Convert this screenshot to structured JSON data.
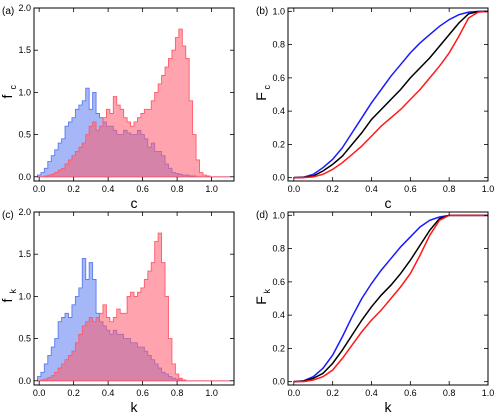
{
  "chart_data": [
    {
      "id": "a",
      "type": "area",
      "panel_label": "(a)",
      "xlabel": "c",
      "ylabel_main": "f",
      "ylabel_sub": "c",
      "xlim": [
        -0.03,
        1.13
      ],
      "ylim": [
        -0.05,
        2.0
      ],
      "xticks": [
        "0.0",
        "0.2",
        "0.4",
        "0.6",
        "0.8",
        "1.0"
      ],
      "yticks": [
        "0.0",
        "0.5",
        "1.0",
        "1.5",
        "2.0"
      ],
      "series": [
        {
          "color": "#5b7cf0",
          "x": [
            0.0,
            0.02,
            0.04,
            0.06,
            0.08,
            0.1,
            0.12,
            0.14,
            0.16,
            0.18,
            0.2,
            0.22,
            0.24,
            0.26,
            0.28,
            0.3,
            0.32,
            0.34,
            0.36,
            0.38,
            0.4,
            0.42,
            0.44,
            0.46,
            0.48,
            0.5,
            0.52,
            0.54,
            0.56,
            0.58,
            0.6,
            0.62,
            0.64,
            0.66,
            0.68,
            0.7,
            0.72,
            0.74,
            0.76,
            0.78,
            0.8,
            0.82,
            0.84,
            0.86,
            0.88,
            0.9,
            0.92,
            0.94,
            0.96,
            0.98,
            1.0,
            1.02,
            1.04,
            1.06,
            1.08,
            1.1
          ],
          "y": [
            0.02,
            0.05,
            0.1,
            0.18,
            0.25,
            0.32,
            0.4,
            0.45,
            0.6,
            0.65,
            0.7,
            0.8,
            0.85,
            0.9,
            1.05,
            0.8,
            1.0,
            0.75,
            0.7,
            0.65,
            0.6,
            0.6,
            0.55,
            0.5,
            0.5,
            0.55,
            0.52,
            0.5,
            0.5,
            0.55,
            0.5,
            0.45,
            0.35,
            0.4,
            0.3,
            0.3,
            0.25,
            0.15,
            0.1,
            0.05,
            0.04,
            0.03,
            0.02,
            0.02,
            0.01,
            0.01,
            0.0,
            0.0,
            0.0,
            0.0,
            0.0,
            0.0,
            0.0,
            0.0,
            0.0,
            0.0
          ]
        },
        {
          "color": "#ff5a6b",
          "x": [
            0.0,
            0.02,
            0.04,
            0.06,
            0.08,
            0.1,
            0.12,
            0.14,
            0.16,
            0.18,
            0.2,
            0.22,
            0.24,
            0.26,
            0.28,
            0.3,
            0.32,
            0.34,
            0.36,
            0.38,
            0.4,
            0.42,
            0.44,
            0.46,
            0.48,
            0.5,
            0.52,
            0.54,
            0.56,
            0.58,
            0.6,
            0.62,
            0.64,
            0.66,
            0.68,
            0.7,
            0.72,
            0.74,
            0.76,
            0.78,
            0.8,
            0.82,
            0.84,
            0.86,
            0.88,
            0.9,
            0.92,
            0.94,
            0.96,
            0.98,
            1.0,
            1.02,
            1.04,
            1.06,
            1.08,
            1.1
          ],
          "y": [
            0.0,
            0.0,
            0.01,
            0.02,
            0.03,
            0.05,
            0.08,
            0.1,
            0.15,
            0.2,
            0.25,
            0.3,
            0.35,
            0.4,
            0.5,
            0.6,
            0.65,
            0.55,
            0.6,
            0.7,
            0.8,
            0.75,
            0.95,
            0.85,
            0.8,
            0.7,
            0.65,
            0.6,
            0.65,
            0.7,
            0.75,
            0.8,
            0.8,
            0.9,
            1.0,
            1.1,
            1.2,
            1.3,
            1.4,
            1.5,
            1.65,
            1.75,
            1.55,
            1.4,
            0.9,
            0.5,
            0.2,
            0.05,
            0.02,
            0.01,
            0.0,
            0.0,
            0.0,
            0.0,
            0.0,
            0.0
          ]
        }
      ]
    },
    {
      "id": "b",
      "type": "line",
      "panel_label": "(b)",
      "xlabel": "c",
      "ylabel_main": "F",
      "ylabel_sub": "c",
      "xlim": [
        -0.03,
        1.0
      ],
      "ylim": [
        -0.02,
        1.02
      ],
      "xticks": [
        "0.0",
        "0.2",
        "0.4",
        "0.6",
        "0.8",
        "1.0"
      ],
      "yticks": [
        "0.0",
        "0.2",
        "0.4",
        "0.6",
        "0.8",
        "1.0"
      ],
      "series": [
        {
          "color": "#1a1aff",
          "x": [
            0,
            0.05,
            0.1,
            0.15,
            0.2,
            0.25,
            0.3,
            0.35,
            0.4,
            0.45,
            0.5,
            0.55,
            0.6,
            0.65,
            0.7,
            0.75,
            0.8,
            0.85,
            0.9,
            0.95,
            1.0
          ],
          "y": [
            0,
            0.003,
            0.02,
            0.06,
            0.11,
            0.18,
            0.27,
            0.36,
            0.45,
            0.53,
            0.61,
            0.68,
            0.75,
            0.81,
            0.86,
            0.91,
            0.95,
            0.98,
            0.995,
            1.0,
            1.0
          ]
        },
        {
          "color": "#000000",
          "x": [
            0,
            0.05,
            0.1,
            0.15,
            0.2,
            0.25,
            0.3,
            0.35,
            0.4,
            0.45,
            0.5,
            0.55,
            0.6,
            0.65,
            0.7,
            0.75,
            0.8,
            0.85,
            0.9,
            0.95,
            1.0
          ],
          "y": [
            0,
            0.002,
            0.01,
            0.04,
            0.08,
            0.13,
            0.2,
            0.27,
            0.35,
            0.41,
            0.47,
            0.53,
            0.6,
            0.66,
            0.72,
            0.79,
            0.86,
            0.93,
            0.985,
            0.998,
            1.0
          ]
        },
        {
          "color": "#ff1a1a",
          "x": [
            0,
            0.05,
            0.1,
            0.15,
            0.2,
            0.25,
            0.3,
            0.35,
            0.4,
            0.45,
            0.5,
            0.55,
            0.6,
            0.65,
            0.7,
            0.75,
            0.8,
            0.85,
            0.9,
            0.95,
            1.0
          ],
          "y": [
            0,
            0.0,
            0.005,
            0.02,
            0.05,
            0.09,
            0.14,
            0.19,
            0.25,
            0.31,
            0.36,
            0.41,
            0.47,
            0.53,
            0.6,
            0.67,
            0.75,
            0.85,
            0.96,
            0.995,
            1.0
          ]
        }
      ]
    },
    {
      "id": "c",
      "type": "area",
      "panel_label": "(c)",
      "xlabel": "k",
      "ylabel_main": "f",
      "ylabel_sub": "k",
      "xlim": [
        -0.03,
        1.13
      ],
      "ylim": [
        -0.05,
        2.0
      ],
      "xticks": [
        "0.0",
        "0.2",
        "0.4",
        "0.6",
        "0.8",
        "1.0"
      ],
      "yticks": [
        "0.0",
        "0.5",
        "1.0",
        "1.5",
        "2.0"
      ],
      "series": [
        {
          "color": "#5b7cf0",
          "x": [
            0.0,
            0.02,
            0.04,
            0.06,
            0.08,
            0.1,
            0.12,
            0.14,
            0.16,
            0.18,
            0.2,
            0.22,
            0.24,
            0.26,
            0.28,
            0.3,
            0.32,
            0.34,
            0.36,
            0.38,
            0.4,
            0.42,
            0.44,
            0.46,
            0.48,
            0.5,
            0.52,
            0.54,
            0.56,
            0.58,
            0.6,
            0.62,
            0.64,
            0.66,
            0.68,
            0.7,
            0.72,
            0.74,
            0.76,
            0.78,
            0.8,
            0.82,
            0.84,
            0.86,
            0.88,
            0.9,
            0.92,
            0.94,
            0.96,
            0.98,
            1.0,
            1.02,
            1.04,
            1.06,
            1.08,
            1.1
          ],
          "y": [
            0.05,
            0.1,
            0.2,
            0.3,
            0.4,
            0.5,
            0.7,
            0.75,
            0.8,
            0.75,
            0.9,
            1.0,
            1.1,
            1.45,
            1.2,
            1.4,
            1.2,
            0.8,
            0.7,
            0.65,
            0.6,
            0.55,
            0.6,
            0.55,
            0.55,
            0.5,
            0.5,
            0.45,
            0.45,
            0.4,
            0.4,
            0.35,
            0.3,
            0.25,
            0.2,
            0.15,
            0.1,
            0.08,
            0.05,
            0.03,
            0.02,
            0.01,
            0.01,
            0.0,
            0.0,
            0.0,
            0.0,
            0.0,
            0.0,
            0.0,
            0.0,
            0.0,
            0.0,
            0.0,
            0.0,
            0.0
          ]
        },
        {
          "color": "#ff5a6b",
          "x": [
            0.0,
            0.02,
            0.04,
            0.06,
            0.08,
            0.1,
            0.12,
            0.14,
            0.16,
            0.18,
            0.2,
            0.22,
            0.24,
            0.26,
            0.28,
            0.3,
            0.32,
            0.34,
            0.36,
            0.38,
            0.4,
            0.42,
            0.44,
            0.46,
            0.48,
            0.5,
            0.52,
            0.54,
            0.56,
            0.58,
            0.6,
            0.62,
            0.64,
            0.66,
            0.68,
            0.7,
            0.72,
            0.74,
            0.76,
            0.78,
            0.8,
            0.82,
            0.84,
            0.86,
            0.88,
            0.9,
            0.92,
            0.94,
            0.96,
            0.98,
            1.0,
            1.02,
            1.04,
            1.06,
            1.08,
            1.1
          ],
          "y": [
            0.0,
            0.01,
            0.02,
            0.04,
            0.06,
            0.1,
            0.15,
            0.2,
            0.25,
            0.3,
            0.35,
            0.45,
            0.55,
            0.65,
            0.7,
            0.75,
            0.7,
            0.75,
            0.8,
            0.9,
            0.75,
            0.7,
            0.75,
            0.85,
            0.8,
            0.8,
            1.0,
            1.05,
            1.0,
            1.05,
            1.1,
            1.2,
            1.3,
            1.4,
            1.65,
            1.75,
            1.4,
            1.0,
            0.5,
            0.2,
            0.08,
            0.03,
            0.01,
            0.0,
            0.0,
            0.0,
            0.0,
            0.0,
            0.0,
            0.0,
            0.0,
            0.0,
            0.0,
            0.0,
            0.0,
            0.0
          ]
        }
      ]
    },
    {
      "id": "d",
      "type": "line",
      "panel_label": "(d)",
      "xlabel": "k",
      "ylabel_main": "F",
      "ylabel_sub": "k",
      "xlim": [
        -0.03,
        1.0
      ],
      "ylim": [
        -0.02,
        1.02
      ],
      "xticks": [
        "0.0",
        "0.2",
        "0.4",
        "0.6",
        "0.8",
        "1.0"
      ],
      "yticks": [
        "0.0",
        "0.2",
        "0.4",
        "0.6",
        "0.8",
        "1.0"
      ],
      "series": [
        {
          "color": "#1a1aff",
          "x": [
            0,
            0.05,
            0.1,
            0.15,
            0.2,
            0.25,
            0.3,
            0.35,
            0.4,
            0.45,
            0.5,
            0.55,
            0.6,
            0.65,
            0.7,
            0.75,
            0.8,
            0.85,
            0.9,
            0.95,
            1.0
          ],
          "y": [
            0,
            0.005,
            0.03,
            0.08,
            0.16,
            0.27,
            0.39,
            0.5,
            0.59,
            0.67,
            0.74,
            0.81,
            0.87,
            0.93,
            0.97,
            0.99,
            1.0,
            1.0,
            1.0,
            1.0,
            1.0
          ]
        },
        {
          "color": "#000000",
          "x": [
            0,
            0.05,
            0.1,
            0.15,
            0.2,
            0.25,
            0.3,
            0.35,
            0.4,
            0.45,
            0.5,
            0.55,
            0.6,
            0.65,
            0.7,
            0.75,
            0.8,
            0.85,
            0.9,
            0.95,
            1.0
          ],
          "y": [
            0,
            0.003,
            0.02,
            0.05,
            0.11,
            0.19,
            0.28,
            0.37,
            0.45,
            0.52,
            0.58,
            0.65,
            0.73,
            0.82,
            0.91,
            0.98,
            1.0,
            1.0,
            1.0,
            1.0,
            1.0
          ]
        },
        {
          "color": "#ff1a1a",
          "x": [
            0,
            0.05,
            0.1,
            0.15,
            0.2,
            0.25,
            0.3,
            0.35,
            0.4,
            0.45,
            0.5,
            0.55,
            0.6,
            0.65,
            0.7,
            0.75,
            0.8,
            0.85,
            0.9,
            0.95,
            1.0
          ],
          "y": [
            0,
            0.0,
            0.01,
            0.03,
            0.07,
            0.14,
            0.22,
            0.3,
            0.37,
            0.43,
            0.5,
            0.57,
            0.65,
            0.76,
            0.88,
            0.97,
            1.0,
            1.0,
            1.0,
            1.0,
            1.0
          ]
        }
      ]
    }
  ]
}
